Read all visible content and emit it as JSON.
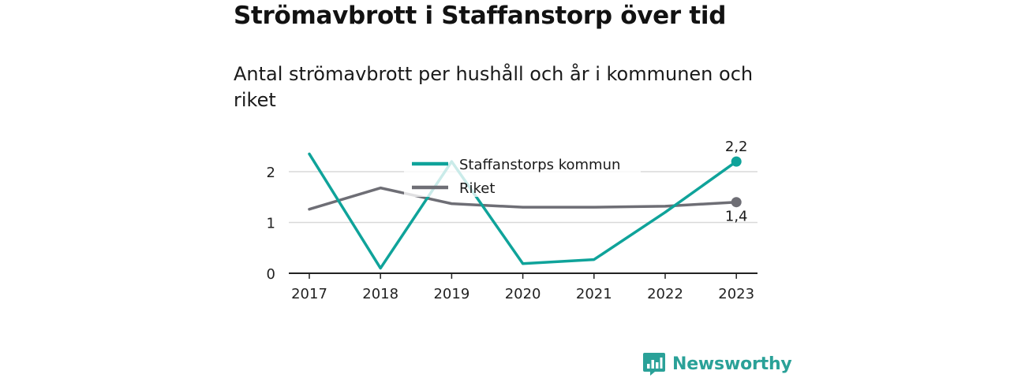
{
  "title": "Strömavbrott i Staffanstorp över tid",
  "subtitle": "Antal strömavbrott per hushåll och år i kommunen och riket",
  "brand": {
    "name": "Newsworthy",
    "icon": "newsworthy-logo-icon"
  },
  "colors": {
    "staffanstorp": "#0fa39a",
    "riket": "#6e6e75",
    "grid": "#d9d9d9",
    "axis": "#222222"
  },
  "chart_data": {
    "type": "line",
    "x": [
      "2017",
      "2018",
      "2019",
      "2020",
      "2021",
      "2022",
      "2023"
    ],
    "ylim": [
      0,
      2.5
    ],
    "yticks": [
      "0",
      "1",
      "2"
    ],
    "grid": true,
    "legend_position": "top-center",
    "series": [
      {
        "name": "Staffanstorps kommun",
        "color": "#0fa39a",
        "values": [
          2.35,
          0.1,
          2.2,
          0.19,
          0.27,
          1.2,
          2.2
        ],
        "end_label": "2,2"
      },
      {
        "name": "Riket",
        "color": "#6e6e75",
        "values": [
          1.26,
          1.68,
          1.37,
          1.3,
          1.3,
          1.32,
          1.4
        ],
        "end_label": "1,4"
      }
    ]
  }
}
